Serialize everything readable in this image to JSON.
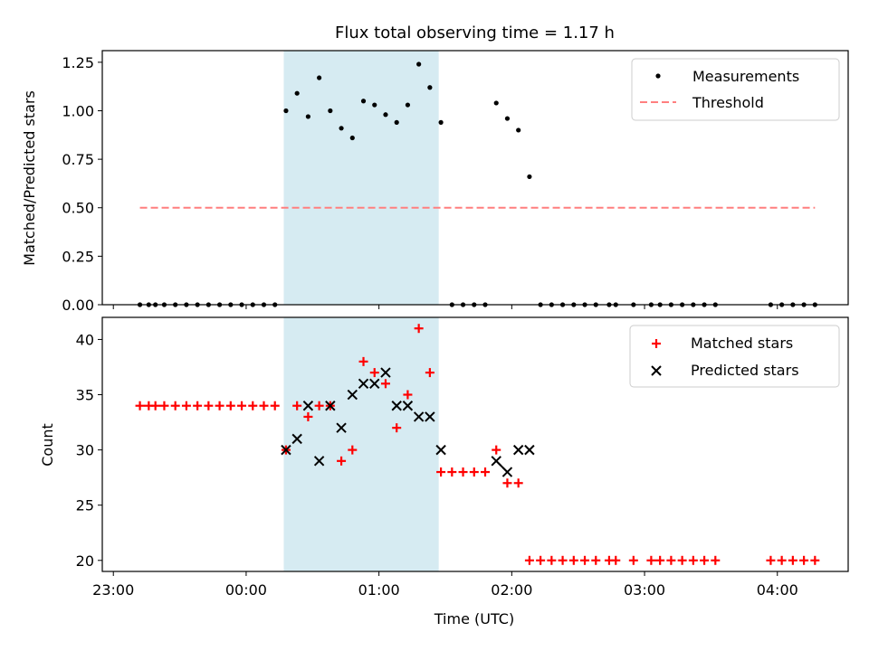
{
  "title": "Flux total observing time = 1.17 h",
  "colors": {
    "measurement": "#000000",
    "threshold": "#ff7f7f",
    "matched": "#ff0000",
    "predicted": "#000000",
    "span_fill": "#add8e6"
  },
  "chart_data": [
    {
      "type": "scatter",
      "ylabel": "Matched/Predicted stars",
      "ylim": [
        0,
        1.31
      ],
      "yticks": [
        "0.00",
        "0.25",
        "0.50",
        "0.75",
        "1.00",
        "1.25"
      ],
      "ytick_values": [
        0,
        0.25,
        0.5,
        0.75,
        1.0,
        1.25
      ],
      "shaded_span": [
        "00:17",
        "01:27"
      ],
      "threshold": {
        "name": "Threshold",
        "value": 0.5,
        "x_range": [
          "23:12",
          "04:17"
        ]
      },
      "legend": {
        "position": "top-right",
        "entries": [
          "Measurements",
          "Threshold"
        ]
      },
      "series": [
        {
          "name": "Measurements",
          "x": [
            "23:12",
            "23:16",
            "23:19",
            "23:23",
            "23:28",
            "23:33",
            "23:38",
            "23:43",
            "23:48",
            "23:53",
            "23:58",
            "00:03",
            "00:08",
            "00:13",
            "00:18",
            "00:23",
            "00:28",
            "00:33",
            "00:38",
            "00:43",
            "00:48",
            "00:53",
            "00:58",
            "01:03",
            "01:08",
            "01:13",
            "01:18",
            "01:23",
            "01:28",
            "01:33",
            "01:38",
            "01:43",
            "01:48",
            "01:53",
            "01:58",
            "02:03",
            "02:08",
            "02:13",
            "02:18",
            "02:23",
            "02:28",
            "02:33",
            "02:38",
            "02:44",
            "02:47",
            "02:55",
            "03:03",
            "03:07",
            "03:12",
            "03:17",
            "03:22",
            "03:27",
            "03:32",
            "03:57",
            "04:02",
            "04:07",
            "04:12",
            "04:17"
          ],
          "y": [
            0,
            0,
            0,
            0,
            0,
            0,
            0,
            0,
            0,
            0,
            0,
            0,
            0,
            0,
            1.0,
            1.09,
            0.97,
            1.17,
            1.0,
            0.91,
            0.86,
            1.05,
            1.03,
            0.98,
            0.94,
            1.03,
            1.24,
            1.12,
            0.94,
            0,
            0,
            0,
            0,
            1.04,
            0.96,
            0.9,
            0.66,
            0,
            0,
            0,
            0,
            0,
            0,
            0,
            0,
            0,
            0,
            0,
            0,
            0,
            0,
            0,
            0,
            0,
            0,
            0,
            0,
            0
          ]
        }
      ]
    },
    {
      "type": "scatter",
      "xlabel": "Time (UTC)",
      "ylabel": "Count",
      "ylim": [
        19.0,
        42.0
      ],
      "yticks": [
        "20",
        "25",
        "30",
        "35",
        "40"
      ],
      "ytick_values": [
        20,
        25,
        30,
        35,
        40
      ],
      "xticks": [
        "23:00",
        "00:00",
        "01:00",
        "02:00",
        "03:00",
        "04:00"
      ],
      "xlim": [
        "22:55",
        "04:32"
      ],
      "shaded_span": [
        "00:17",
        "01:27"
      ],
      "legend": {
        "position": "top-right",
        "entries": [
          "Matched stars",
          "Predicted stars"
        ]
      },
      "series": [
        {
          "name": "Matched stars",
          "x": [
            "23:12",
            "23:16",
            "23:19",
            "23:23",
            "23:28",
            "23:33",
            "23:38",
            "23:43",
            "23:48",
            "23:53",
            "23:58",
            "00:03",
            "00:08",
            "00:13",
            "00:18",
            "00:23",
            "00:28",
            "00:33",
            "00:38",
            "00:43",
            "00:48",
            "00:53",
            "00:58",
            "01:03",
            "01:08",
            "01:13",
            "01:18",
            "01:23",
            "01:28",
            "01:33",
            "01:38",
            "01:43",
            "01:48",
            "01:53",
            "01:58",
            "02:03",
            "02:08",
            "02:13",
            "02:18",
            "02:23",
            "02:28",
            "02:33",
            "02:38",
            "02:44",
            "02:47",
            "02:55",
            "03:03",
            "03:07",
            "03:12",
            "03:17",
            "03:22",
            "03:27",
            "03:32",
            "03:57",
            "04:02",
            "04:07",
            "04:12",
            "04:17"
          ],
          "y": [
            34,
            34,
            34,
            34,
            34,
            34,
            34,
            34,
            34,
            34,
            34,
            34,
            34,
            34,
            30,
            34,
            33,
            34,
            34,
            29,
            30,
            38,
            37,
            36,
            32,
            35,
            41,
            37,
            28,
            28,
            28,
            28,
            28,
            30,
            27,
            27,
            20,
            20,
            20,
            20,
            20,
            20,
            20,
            20,
            20,
            20,
            20,
            20,
            20,
            20,
            20,
            20,
            20,
            20,
            20,
            20,
            20,
            20
          ]
        },
        {
          "name": "Predicted stars",
          "x": [
            "00:18",
            "00:23",
            "00:28",
            "00:33",
            "00:38",
            "00:43",
            "00:48",
            "00:53",
            "00:58",
            "01:03",
            "01:08",
            "01:13",
            "01:18",
            "01:23",
            "01:28",
            "01:53",
            "01:58",
            "02:03",
            "02:08"
          ],
          "y": [
            30,
            31,
            34,
            29,
            34,
            32,
            35,
            36,
            36,
            37,
            34,
            34,
            33,
            33,
            30,
            29,
            28,
            30,
            30
          ]
        }
      ]
    }
  ]
}
